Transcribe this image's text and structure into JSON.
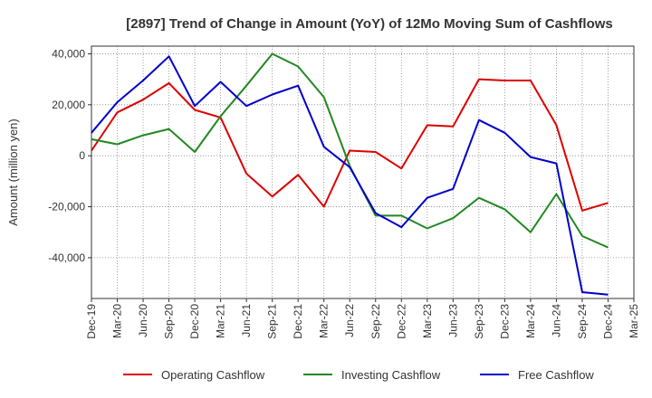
{
  "chart_data": {
    "type": "line",
    "title": "[2897]  Trend of Change in Amount (YoY) of 12Mo Moving Sum of Cashflows",
    "xlabel": "",
    "ylabel": "Amount (million yen)",
    "x": [
      "Dec-19",
      "Mar-20",
      "Jun-20",
      "Sep-20",
      "Dec-20",
      "Mar-21",
      "Jun-21",
      "Sep-21",
      "Dec-21",
      "Mar-22",
      "Jun-22",
      "Sep-22",
      "Dec-22",
      "Mar-23",
      "Jun-23",
      "Sep-23",
      "Dec-23",
      "Mar-24",
      "Jun-24",
      "Sep-24",
      "Dec-24",
      "Mar-25"
    ],
    "ylim": [
      -56000,
      43000
    ],
    "yticks": [
      40000,
      20000,
      0,
      -20000,
      -40000
    ],
    "ytick_labels": [
      "40,000",
      "20,000",
      "0",
      "-20,000",
      "-40,000"
    ],
    "grid": true,
    "legend_position": "bottom",
    "series": [
      {
        "name": "Operating Cashflow",
        "color": "#dd0000",
        "values": [
          2000,
          17000,
          22000,
          28500,
          18000,
          15000,
          -7000,
          -16000,
          -7500,
          -20000,
          2000,
          1500,
          -5000,
          12000,
          11500,
          30000,
          29500,
          29500,
          12000,
          -21500,
          -18500,
          null
        ]
      },
      {
        "name": "Investing Cashflow",
        "color": "#228822",
        "values": [
          6500,
          4500,
          8000,
          10500,
          1500,
          15500,
          27500,
          40000,
          35000,
          23000,
          -4000,
          -23500,
          -23500,
          -28500,
          -24500,
          -16500,
          -21000,
          -30000,
          -15000,
          -31500,
          -36000,
          null
        ]
      },
      {
        "name": "Free Cashflow",
        "color": "#0000cc",
        "values": [
          9000,
          21000,
          29500,
          39000,
          19500,
          29000,
          19500,
          24000,
          27500,
          3500,
          -4500,
          -22500,
          -28000,
          -16500,
          -13000,
          14000,
          9000,
          -500,
          -3000,
          -53500,
          -54500,
          null
        ]
      }
    ]
  }
}
